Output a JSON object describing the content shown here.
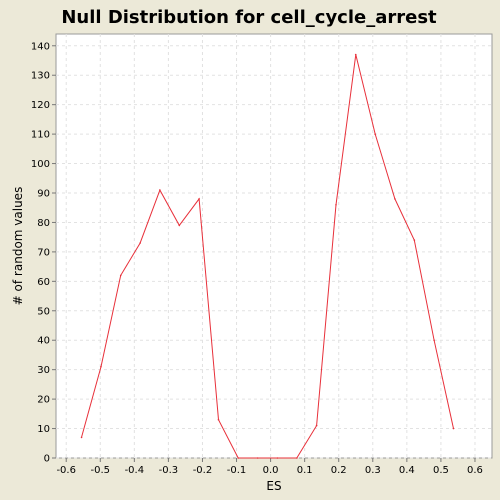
{
  "chart_data": {
    "type": "line",
    "title": "Null Distribution for cell_cycle_arrest",
    "xlabel": "ES",
    "ylabel": "# of random values",
    "xlim": [
      -0.63,
      0.65
    ],
    "ylim": [
      0,
      144
    ],
    "x_ticks": [
      -0.6,
      -0.5,
      -0.4,
      -0.3,
      -0.2,
      -0.1,
      0.0,
      0.1,
      0.2,
      0.3,
      0.4,
      0.5,
      0.6
    ],
    "x_tick_labels": [
      "-0.6",
      "-0.5",
      "-0.4",
      "-0.3",
      "-0.2",
      "-0.1",
      "0.0",
      "0.1",
      "0.2",
      "0.3",
      "0.4",
      "0.5",
      "0.6"
    ],
    "y_ticks": [
      0,
      10,
      20,
      30,
      40,
      50,
      60,
      70,
      80,
      90,
      100,
      110,
      120,
      130,
      140
    ],
    "y_tick_labels": [
      "0",
      "10",
      "20",
      "30",
      "40",
      "50",
      "60",
      "70",
      "80",
      "90",
      "100",
      "110",
      "120",
      "130",
      "140"
    ],
    "grid": true,
    "series": [
      {
        "color": "#e8303a",
        "x": [
          -0.555,
          -0.498,
          -0.44,
          -0.383,
          -0.325,
          -0.268,
          -0.21,
          -0.153,
          -0.095,
          -0.038,
          0.02,
          0.077,
          0.135,
          0.192,
          0.25,
          0.307,
          0.365,
          0.422,
          0.48,
          0.537
        ],
        "y": [
          7,
          31,
          62,
          73,
          91,
          79,
          88,
          13,
          0,
          0,
          0,
          0,
          11,
          86,
          137,
          110,
          88,
          74,
          40,
          10
        ]
      }
    ]
  }
}
